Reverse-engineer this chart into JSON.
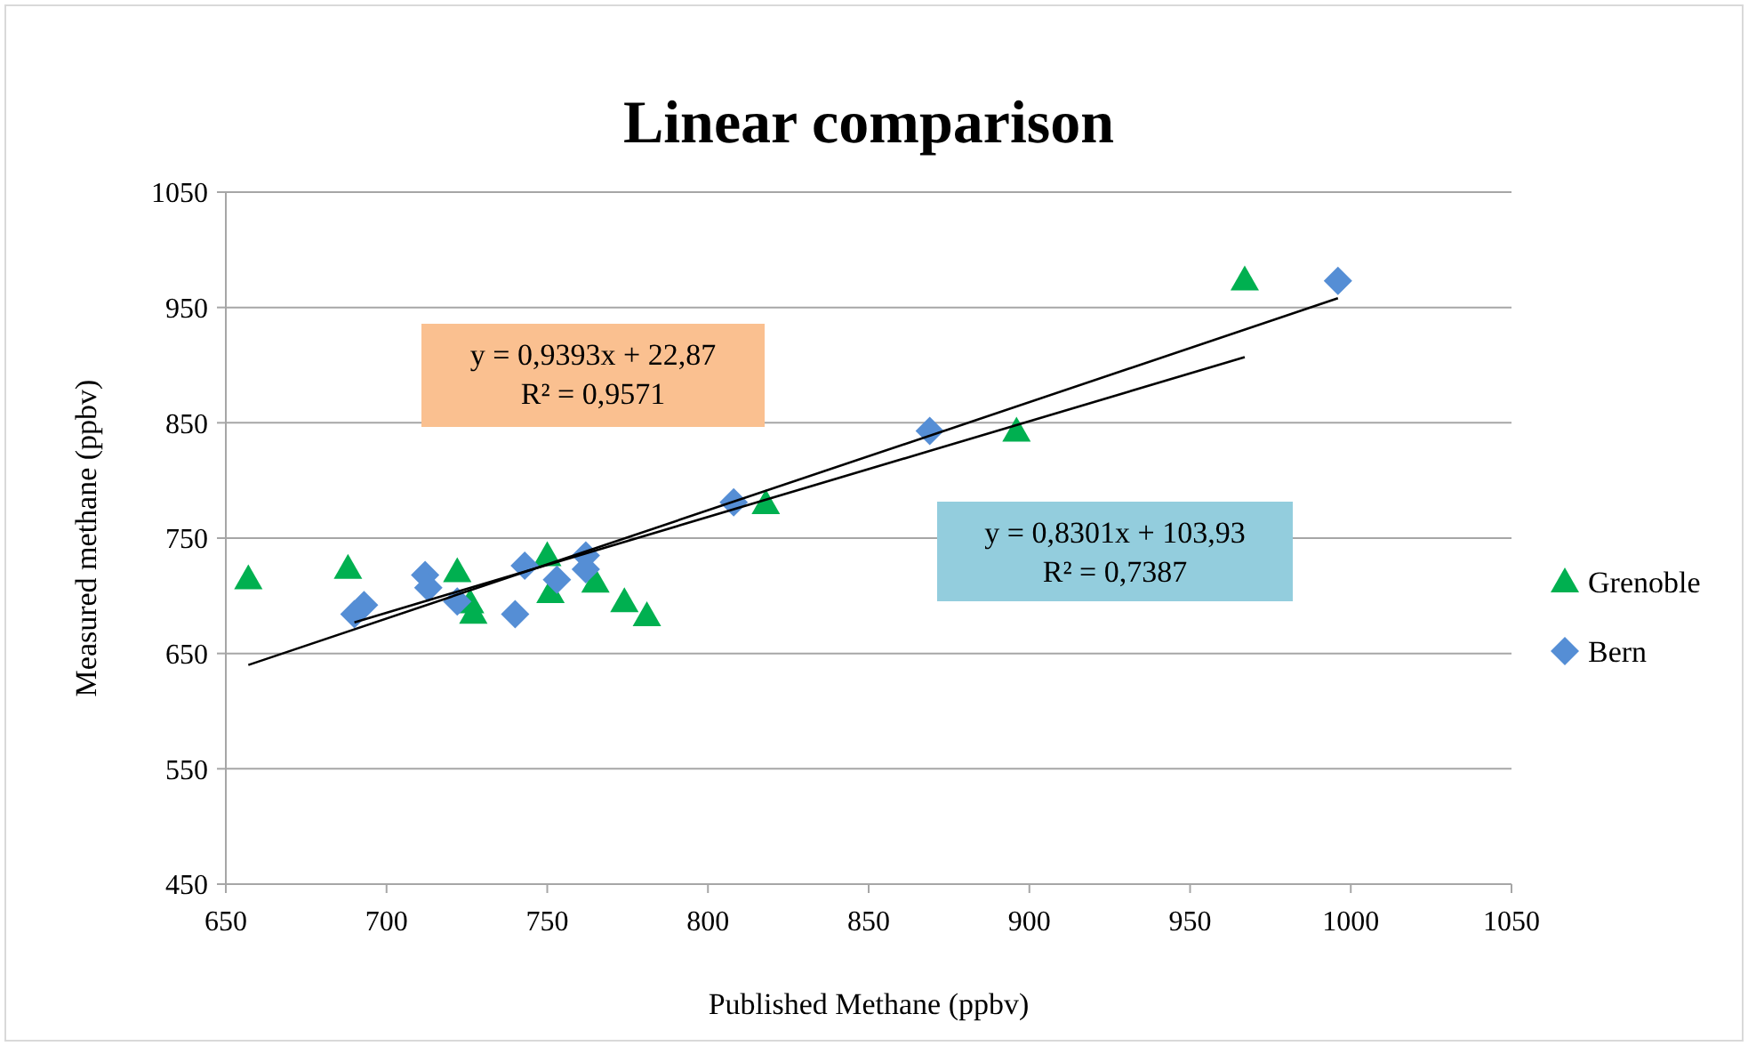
{
  "chart_data": {
    "type": "scatter",
    "title": "Linear comparison",
    "xlabel": "Published  Methane (ppbv)",
    "ylabel": "Measured methane (ppbv)",
    "xlim": [
      650,
      1050
    ],
    "xticks": [
      650,
      700,
      750,
      800,
      850,
      900,
      950,
      1000,
      1050
    ],
    "ylim": [
      450,
      1050
    ],
    "yticks": [
      450,
      550,
      650,
      750,
      850,
      950,
      1050
    ],
    "grid": "y",
    "legend": "right",
    "series": [
      {
        "name": "Grenoble",
        "color": "#00b050",
        "marker": "triangle",
        "x": [
          657,
          688,
          722,
          726,
          727,
          750,
          751,
          765,
          774,
          781,
          818,
          896,
          967
        ],
        "values": [
          715,
          724,
          721,
          694,
          685,
          735,
          703,
          712,
          695,
          683,
          780,
          843,
          974
        ]
      },
      {
        "name": "Bern",
        "color": "#558ed5",
        "marker": "diamond",
        "x": [
          690,
          693,
          712,
          713,
          722,
          740,
          743,
          753,
          762,
          762,
          808,
          869,
          996
        ],
        "values": [
          684,
          692,
          718,
          707,
          695,
          684,
          726,
          714,
          723,
          735,
          781,
          843,
          973
        ]
      },
      {
        "type": "line",
        "color": "#000000",
        "x": [
          657,
          996
        ],
        "values": [
          640,
          958
        ]
      },
      {
        "type": "line",
        "color": "#000000",
        "x": [
          690,
          967
        ],
        "values": [
          677,
          907
        ]
      }
    ],
    "annotations": [
      "y = 0,9393x  + 22,87",
      "R² = 0,9571",
      "y = 0,8301x  + 103,93",
      "R² = 0,7387"
    ]
  }
}
